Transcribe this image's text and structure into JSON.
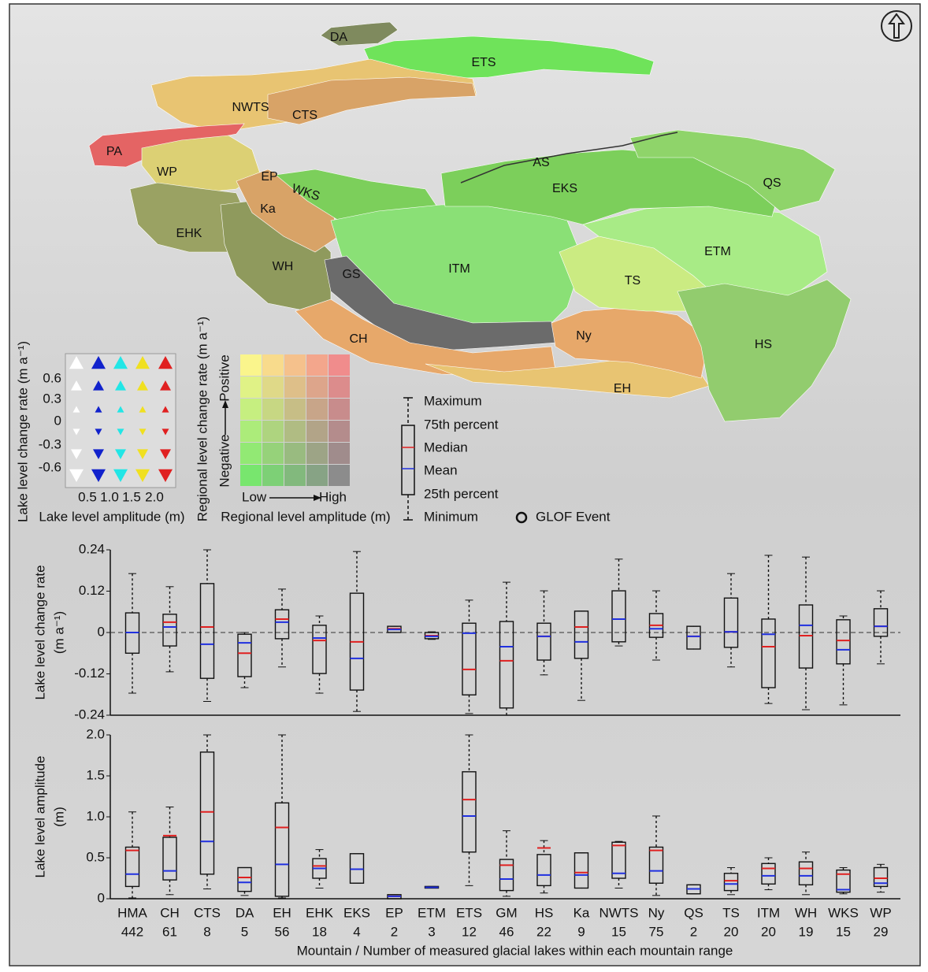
{
  "map": {
    "regions": [
      "DA",
      "ETS",
      "NWTS",
      "CTS",
      "PA",
      "WP",
      "EP",
      "WKS",
      "Ka",
      "EHK",
      "AS",
      "EKS",
      "QS",
      "ITM",
      "ETM",
      "WH",
      "GS",
      "TS",
      "Ny",
      "CH",
      "HS",
      "EH"
    ],
    "legend": {
      "change_label": "Lake level change rate (m a⁻¹)",
      "change_ticks": [
        0.6,
        0.3,
        0,
        -0.3,
        -0.6
      ],
      "amplitude_ticks": [
        0.5,
        {
          "value": 1.0,
          "label": "1.0"
        },
        1.5,
        {
          "value": 2.0,
          "label": "2.0"
        }
      ],
      "amplitude_label": "Lake level amplitude (m)",
      "regional_change_label": "Regional level change rate (m a⁻¹)",
      "regional_direction": [
        "Negative",
        "Positive"
      ],
      "regional_amplitude": [
        "Low",
        "High"
      ],
      "regional_amplitude_label": "Regional level amplitude (m)",
      "box_legend": [
        "Maximum",
        "75th percent",
        "Median",
        "Mean",
        "25th percent",
        "Minimum"
      ],
      "glof": "GLOF Event"
    }
  },
  "chart_data": [
    {
      "type": "box",
      "ylabel": [
        "Lake level change rate",
        "(m a⁻¹)"
      ],
      "ylim": [
        -0.24,
        0.24
      ],
      "yticks": [
        0.24,
        0.12,
        0,
        -0.12,
        -0.24
      ],
      "refline": 0,
      "median_color": "#e02020",
      "mean_color": "#2030e0",
      "boxes": {
        "min": [
          -0.176,
          -0.114,
          -0.2,
          -0.16,
          -0.1,
          -0.176,
          -0.229,
          0,
          -0.02,
          -0.235,
          -0.24,
          -0.123,
          -0.197,
          -0.039,
          -0.08,
          -0.048,
          -0.1,
          -0.206,
          -0.224,
          -0.21,
          -0.091
        ],
        "q1": [
          -0.06,
          -0.039,
          -0.133,
          -0.128,
          -0.018,
          -0.119,
          -0.167,
          0,
          -0.018,
          -0.181,
          -0.219,
          -0.08,
          -0.075,
          -0.027,
          -0.014,
          -0.048,
          -0.043,
          -0.16,
          -0.103,
          -0.091,
          -0.011
        ],
        "median": [
          0,
          0.03,
          0.016,
          -0.06,
          0.039,
          -0.023,
          -0.027,
          0.011,
          -0.009,
          -0.107,
          -0.082,
          -0.011,
          0.016,
          0.039,
          0.021,
          -0.011,
          0.002,
          -0.041,
          -0.009,
          -0.023,
          0.018
        ],
        "mean": [
          0,
          0.016,
          -0.034,
          -0.03,
          0.03,
          -0.016,
          -0.075,
          0.009,
          -0.011,
          -0.002,
          -0.041,
          -0.011,
          -0.027,
          0.039,
          0.011,
          -0.011,
          0.002,
          -0.005,
          0.021,
          -0.05,
          0.018
        ],
        "q3": [
          0.057,
          0.053,
          0.142,
          -0.005,
          0.066,
          0.021,
          0.114,
          0.018,
          0,
          0.027,
          0.032,
          0.027,
          0.062,
          0.121,
          0.055,
          0.018,
          0.1,
          0.039,
          0.08,
          0.037,
          0.069
        ],
        "max": [
          0.171,
          0.133,
          0.24,
          0,
          0.126,
          0.048,
          0.235,
          0.018,
          0.002,
          0.094,
          0.146,
          0.121,
          0.062,
          0.213,
          0.121,
          0.018,
          0.171,
          0.224,
          0.219,
          0.048,
          0.121
        ]
      }
    },
    {
      "type": "box",
      "ylabel": [
        "Lake level amplitude",
        "(m)"
      ],
      "xlabel": "Mountain / Number of measured glacial lakes within each mountain range",
      "categories": [
        "HMA",
        "CH",
        "CTS",
        "DA",
        "EH",
        "EHK",
        "EKS",
        "EP",
        "ETM",
        "ETS",
        "GM",
        "HS",
        "Ka",
        "NWTS",
        "Ny",
        "QS",
        "TS",
        "ITM",
        "WH",
        "WKS",
        "WP"
      ],
      "counts": [
        442,
        61,
        8,
        5,
        56,
        18,
        4,
        2,
        3,
        12,
        46,
        22,
        9,
        15,
        75,
        2,
        20,
        20,
        19,
        15,
        29
      ],
      "ylim": [
        0,
        2.0
      ],
      "yticks": [
        {
          "value": 2.0,
          "label": "2.0"
        },
        1.5,
        {
          "value": 1.0,
          "label": "1.0"
        },
        0.5,
        0
      ],
      "median_color": "#e02020",
      "mean_color": "#2030e0",
      "boxes": {
        "min": [
          0.01,
          0.05,
          0.12,
          0.04,
          0.01,
          0.13,
          0.19,
          0,
          0.13,
          0.16,
          0.03,
          0.07,
          0.13,
          0.13,
          0.04,
          0.06,
          0.05,
          0.11,
          0.05,
          0.06,
          0.08
        ],
        "q1": [
          0.15,
          0.23,
          0.3,
          0.09,
          0.03,
          0.25,
          0.19,
          0,
          0.13,
          0.57,
          0.1,
          0.16,
          0.13,
          0.25,
          0.19,
          0.06,
          0.1,
          0.18,
          0.17,
          0.08,
          0.15
        ],
        "median": [
          0.59,
          0.77,
          1.06,
          0.26,
          0.87,
          0.4,
          0.36,
          0.03,
          0.14,
          1.21,
          0.41,
          0.62,
          0.32,
          0.65,
          0.59,
          0.12,
          0.22,
          0.37,
          0.37,
          0.3,
          0.25
        ],
        "mean": [
          0.3,
          0.34,
          0.7,
          0.2,
          0.42,
          0.37,
          0.36,
          0.03,
          0.14,
          1.01,
          0.24,
          0.29,
          0.29,
          0.31,
          0.34,
          0.12,
          0.18,
          0.28,
          0.28,
          0.11,
          0.19
        ],
        "q3": [
          0.63,
          0.75,
          1.79,
          0.38,
          1.17,
          0.49,
          0.55,
          0.05,
          0.15,
          1.55,
          0.48,
          0.54,
          0.56,
          0.69,
          0.63,
          0.17,
          0.31,
          0.43,
          0.45,
          0.35,
          0.38
        ],
        "max": [
          1.06,
          1.12,
          2.0,
          0.38,
          2.0,
          0.6,
          0.55,
          0.05,
          0.15,
          2.0,
          0.83,
          0.71,
          0.56,
          0.7,
          1.01,
          0.17,
          0.38,
          0.5,
          0.57,
          0.38,
          0.42
        ]
      }
    }
  ]
}
